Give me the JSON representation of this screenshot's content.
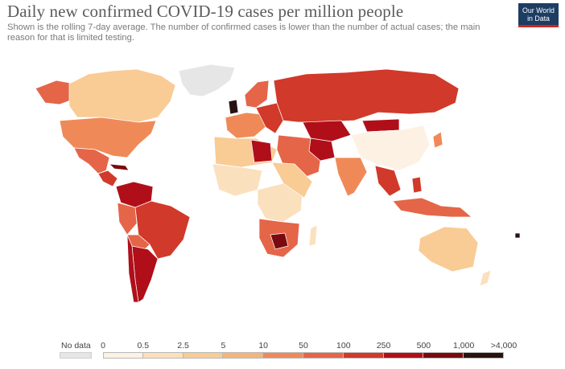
{
  "header": {
    "title": "Daily new confirmed COVID-19 cases per million people",
    "subtitle": "Shown is the rolling 7-day average. The number of confirmed cases is lower than the number of actual cases; the main reason for that is limited testing.",
    "logo_line1": "Our World",
    "logo_line2": "in Data"
  },
  "legend": {
    "no_data_label": "No data",
    "no_data_color": "#e6e6e6",
    "ticks": [
      "0",
      "0.5",
      "2.5",
      "5",
      "10",
      "50",
      "100",
      "250",
      "500",
      "1,000",
      ">4,000"
    ],
    "colors": [
      "#fdf1e3",
      "#fbe0bd",
      "#f9cb95",
      "#f5b47a",
      "#ef8a58",
      "#e56548",
      "#d1392a",
      "#b00f1a",
      "#7a0a0f",
      "#2a1210"
    ]
  }
}
